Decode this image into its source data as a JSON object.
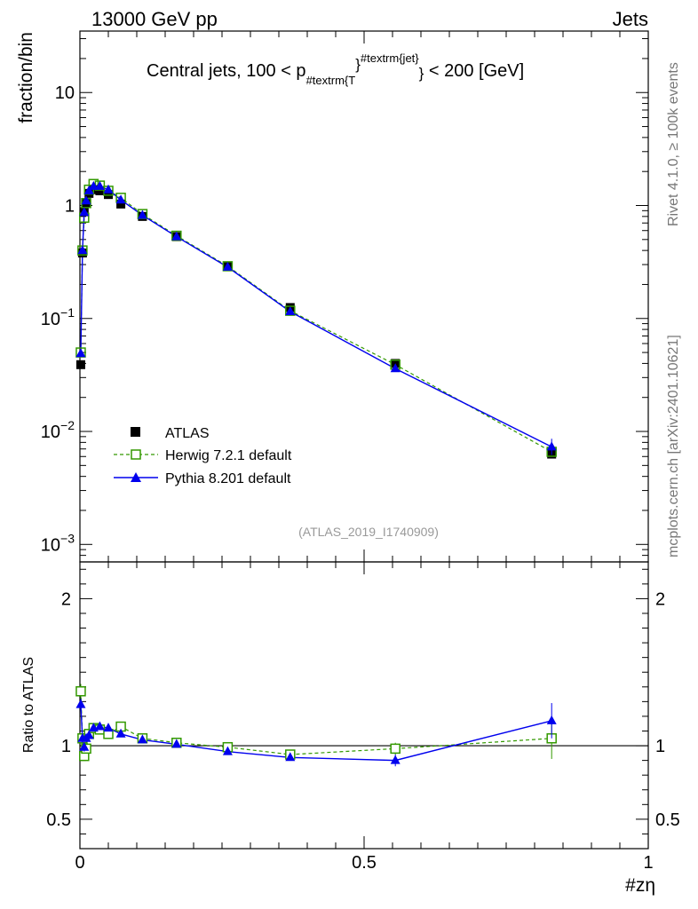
{
  "header": {
    "left": "13000 GeV pp",
    "right": "Jets"
  },
  "side_labels": {
    "rivet": "Rivet 4.1.0, ≥ 100k events",
    "mcplots": "mcplots.cern.ch [arXiv:2401.10621]"
  },
  "colors": {
    "atlas": "#000000",
    "herwig": "#339900",
    "pythia": "#0000ee",
    "watermark": "#999999"
  },
  "chart_data": [
    {
      "type": "scatter",
      "panel": "main",
      "title_parts": {
        "pre": "Central jets, 100 < p",
        "sub": "#textrm{T",
        "close1": "}",
        "sup": "#textrm{jet}",
        "close2": "}",
        "post": " < 200 [GeV]"
      },
      "watermark": "(ATLAS_2019_I1740909)",
      "xlabel": "#zη",
      "ylabel": "fraction/bin",
      "xlim": [
        0,
        1
      ],
      "ylim": [
        0.0007,
        35
      ],
      "yscale": "log",
      "x_ticks": [
        "0",
        "0.5",
        "1"
      ],
      "y_ticks": [
        {
          "value": 0.001,
          "base": "10",
          "exp": "−3"
        },
        {
          "value": 0.01,
          "base": "10",
          "exp": "−2"
        },
        {
          "value": 0.1,
          "base": "10",
          "exp": "−1"
        },
        {
          "value": 1,
          "label": "1"
        },
        {
          "value": 10,
          "label": "10"
        }
      ],
      "legend": {
        "position": "bottom-left",
        "entries": [
          "ATLAS",
          "Herwig 7.2.1 default",
          "Pythia 8.201 default"
        ]
      },
      "series": [
        {
          "name": "ATLAS",
          "marker": "square",
          "x": [
            0.0015,
            0.0045,
            0.0075,
            0.011,
            0.016,
            0.024,
            0.035,
            0.05,
            0.072,
            0.11,
            0.17,
            0.26,
            0.37,
            0.555,
            0.83
          ],
          "y": [
            0.039,
            0.38,
            0.88,
            1.05,
            1.28,
            1.38,
            1.35,
            1.25,
            1.03,
            0.8,
            0.53,
            0.29,
            0.125,
            0.04,
            0.0063
          ]
        },
        {
          "name": "Herwig 7.2.1 default",
          "marker": "open-square",
          "line": "dashed",
          "x": [
            0.0015,
            0.0045,
            0.0075,
            0.011,
            0.016,
            0.024,
            0.035,
            0.05,
            0.072,
            0.11,
            0.17,
            0.26,
            0.37,
            0.555,
            0.83
          ],
          "y": [
            0.05,
            0.4,
            0.78,
            1.05,
            1.38,
            1.55,
            1.5,
            1.35,
            1.17,
            0.84,
            0.54,
            0.29,
            0.117,
            0.039,
            0.0066
          ]
        },
        {
          "name": "Pythia 8.201 default",
          "marker": "triangle",
          "line": "solid",
          "x": [
            0.0015,
            0.0045,
            0.0075,
            0.011,
            0.016,
            0.024,
            0.035,
            0.05,
            0.072,
            0.11,
            0.17,
            0.26,
            0.37,
            0.555,
            0.83
          ],
          "y": [
            0.049,
            0.4,
            0.87,
            1.1,
            1.35,
            1.48,
            1.48,
            1.38,
            1.12,
            0.82,
            0.53,
            0.285,
            0.115,
            0.036,
            0.0073
          ]
        }
      ]
    },
    {
      "type": "scatter",
      "panel": "ratio",
      "ylabel": "Ratio to ATLAS",
      "xlim": [
        0,
        1
      ],
      "ylim": [
        0.3,
        2.25
      ],
      "y_ticks": [
        {
          "value": 0.5,
          "label": "0.5"
        },
        {
          "value": 1,
          "label": "1"
        },
        {
          "value": 2,
          "label": "2"
        }
      ],
      "reference": 1,
      "series": [
        {
          "name": "Herwig 7.2.1 default",
          "x": [
            0.0015,
            0.0045,
            0.0075,
            0.011,
            0.016,
            0.024,
            0.035,
            0.05,
            0.072,
            0.11,
            0.17,
            0.26,
            0.37,
            0.555,
            0.83
          ],
          "y": [
            1.37,
            1.05,
            0.93,
            0.98,
            1.08,
            1.12,
            1.11,
            1.08,
            1.13,
            1.05,
            1.02,
            0.99,
            0.94,
            0.98,
            1.05
          ],
          "err": [
            0.05,
            0.03,
            0.03,
            0.02,
            0.02,
            0.02,
            0.02,
            0.02,
            0.02,
            0.02,
            0.02,
            0.02,
            0.02,
            0.04,
            0.14
          ]
        },
        {
          "name": "Pythia 8.201 default",
          "x": [
            0.0015,
            0.0045,
            0.0075,
            0.011,
            0.016,
            0.024,
            0.035,
            0.05,
            0.072,
            0.11,
            0.17,
            0.26,
            0.37,
            0.555,
            0.83
          ],
          "y": [
            1.28,
            1.05,
            0.99,
            1.05,
            1.07,
            1.12,
            1.13,
            1.12,
            1.08,
            1.04,
            1.01,
            0.96,
            0.92,
            0.9,
            1.17
          ],
          "err": [
            0.04,
            0.03,
            0.03,
            0.02,
            0.02,
            0.02,
            0.02,
            0.02,
            0.02,
            0.02,
            0.02,
            0.02,
            0.02,
            0.04,
            0.12
          ]
        }
      ]
    }
  ]
}
